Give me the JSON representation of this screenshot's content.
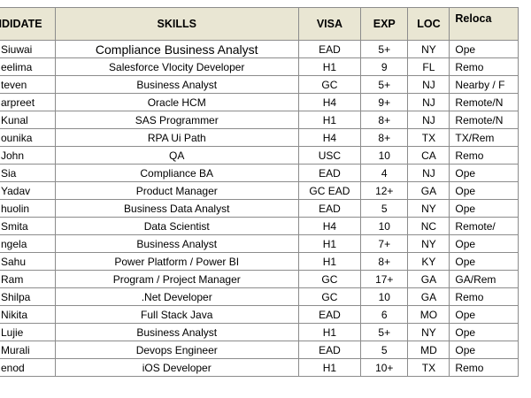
{
  "table": {
    "headers": {
      "candidate": "NDIDATE",
      "skills": "SKILLS",
      "visa": "VISA",
      "exp": "EXP",
      "loc": "LOC",
      "relocation": "Reloca"
    },
    "rows": [
      {
        "name": "Siuwai",
        "skills": "Compliance Business Analyst",
        "visa": "EAD",
        "exp": "5+",
        "loc": "NY",
        "relocation": "Ope"
      },
      {
        "name": "eelima",
        "skills": "Salesforce Vlocity Developer",
        "visa": "H1",
        "exp": "9",
        "loc": "FL",
        "relocation": "Remo"
      },
      {
        "name": "teven",
        "skills": "Business Analyst",
        "visa": "GC",
        "exp": "5+",
        "loc": "NJ",
        "relocation": "Nearby / F"
      },
      {
        "name": "arpreet",
        "skills": "Oracle HCM",
        "visa": "H4",
        "exp": "9+",
        "loc": "NJ",
        "relocation": "Remote/N"
      },
      {
        "name": "Kunal",
        "skills": "SAS Programmer",
        "visa": "H1",
        "exp": "8+",
        "loc": "NJ",
        "relocation": "Remote/N"
      },
      {
        "name": "ounika",
        "skills": "RPA Ui Path",
        "visa": "H4",
        "exp": "8+",
        "loc": "TX",
        "relocation": "TX/Rem"
      },
      {
        "name": "John",
        "skills": "QA",
        "visa": "USC",
        "exp": "10",
        "loc": "CA",
        "relocation": "Remo"
      },
      {
        "name": "Sia",
        "skills": "Compliance BA",
        "visa": "EAD",
        "exp": "4",
        "loc": "NJ",
        "relocation": "Ope"
      },
      {
        "name": "Yadav",
        "skills": "Product Manager",
        "visa": "GC EAD",
        "exp": "12+",
        "loc": "GA",
        "relocation": "Ope"
      },
      {
        "name": "huolin",
        "skills": "Business Data Analyst",
        "visa": "EAD",
        "exp": "5",
        "loc": "NY",
        "relocation": "Ope"
      },
      {
        "name": "Smita",
        "skills": "Data Scientist",
        "visa": "H4",
        "exp": "10",
        "loc": "NC",
        "relocation": "Remote/"
      },
      {
        "name": "ngela",
        "skills": "Business Analyst",
        "visa": "H1",
        "exp": "7+",
        "loc": "NY",
        "relocation": "Ope"
      },
      {
        "name": "Sahu",
        "skills": "Power Platform / Power BI",
        "visa": "H1",
        "exp": "8+",
        "loc": "KY",
        "relocation": "Ope"
      },
      {
        "name": "Ram",
        "skills": "Program / Project Manager",
        "visa": "GC",
        "exp": "17+",
        "loc": "GA",
        "relocation": "GA/Rem"
      },
      {
        "name": "Shilpa",
        "skills": ".Net Developer",
        "visa": "GC",
        "exp": "10",
        "loc": "GA",
        "relocation": "Remo"
      },
      {
        "name": "Nikita",
        "skills": "Full Stack Java",
        "visa": "EAD",
        "exp": "6",
        "loc": "MO",
        "relocation": "Ope"
      },
      {
        "name": "Lujie",
        "skills": "Business Analyst",
        "visa": "H1",
        "exp": "5+",
        "loc": "NY",
        "relocation": "Ope"
      },
      {
        "name": "Murali",
        "skills": "Devops Engineer",
        "visa": "EAD",
        "exp": "5",
        "loc": "MD",
        "relocation": "Ope"
      },
      {
        "name": "enod",
        "skills": "iOS Developer",
        "visa": "H1",
        "exp": "10+",
        "loc": "TX",
        "relocation": "Remo"
      }
    ]
  }
}
